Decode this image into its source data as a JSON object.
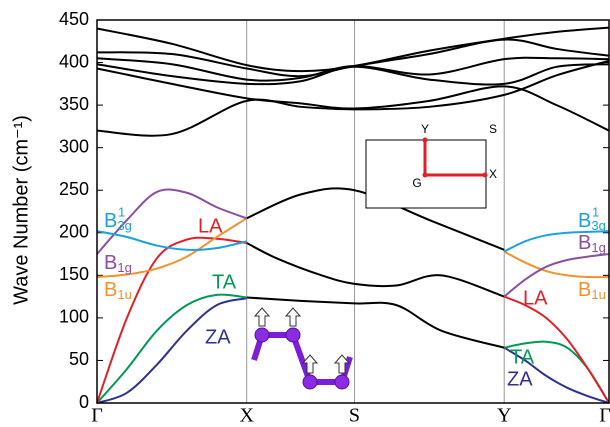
{
  "chart_data": {
    "type": "line",
    "ylabel": "Wave Number (cm⁻¹)",
    "xlim": [
      0,
      3.42
    ],
    "ylim": [
      0,
      450
    ],
    "xticks": [
      {
        "value": 0,
        "label": "Γ"
      },
      {
        "value": 1,
        "label": "X"
      },
      {
        "value": 1.72,
        "label": "S"
      },
      {
        "value": 2.72,
        "label": "Y"
      },
      {
        "value": 3.42,
        "label": "Γ"
      }
    ],
    "yticks": [
      0,
      50,
      100,
      150,
      200,
      250,
      300,
      350,
      400,
      450
    ],
    "inset_labels": {
      "y": "Y",
      "s": "S",
      "g": "G",
      "x": "X"
    },
    "series": [
      {
        "color": "#000000",
        "x": [
          0,
          0.5,
          1,
          1.36,
          1.72,
          2.22,
          2.72,
          3.07,
          3.42
        ],
        "values": [
          440,
          422,
          397,
          390,
          396,
          414,
          428,
          436,
          441
        ]
      },
      {
        "color": "#000000",
        "x": [
          0,
          0.5,
          1,
          1.36,
          1.72,
          2.22,
          2.72,
          3.07,
          3.42
        ],
        "values": [
          412,
          410,
          393,
          384,
          396,
          410,
          427,
          416,
          408
        ]
      },
      {
        "color": "#000000",
        "x": [
          0,
          0.5,
          1,
          1.36,
          1.72,
          2.22,
          2.72,
          3.07,
          3.42
        ],
        "values": [
          405,
          398,
          380,
          382,
          396,
          386,
          404,
          405,
          404
        ]
      },
      {
        "color": "#000000",
        "x": [
          0,
          0.5,
          1,
          1.36,
          1.72,
          2.22,
          2.72,
          3.07,
          3.42
        ],
        "values": [
          398,
          384,
          375,
          378,
          395,
          380,
          375,
          395,
          398
        ]
      },
      {
        "color": "#000000",
        "x": [
          0,
          0.5,
          1,
          1.36,
          1.72,
          2.22,
          2.72,
          3.07,
          3.42
        ],
        "values": [
          393,
          375,
          358,
          352,
          346,
          355,
          372,
          350,
          320
        ]
      },
      {
        "color": "#000000",
        "x": [
          0,
          0.5,
          1,
          1.36,
          1.72,
          2.22,
          2.72,
          3.07,
          3.42
        ],
        "values": [
          320,
          316,
          355,
          348,
          345,
          348,
          362,
          385,
          402
        ]
      },
      {
        "color": "#000000",
        "x": [
          1,
          1.36,
          1.72,
          2.22,
          2.72
        ],
        "values": [
          217,
          245,
          250,
          215,
          180
        ]
      },
      {
        "color": "#000000",
        "x": [
          1,
          1.2,
          1.5,
          1.72,
          2.0,
          2.3,
          2.72
        ],
        "values": [
          188,
          170,
          150,
          140,
          138,
          150,
          125
        ]
      },
      {
        "color": "#000000",
        "x": [
          1,
          1.36,
          1.72,
          2.0,
          2.3,
          2.72
        ],
        "values": [
          124,
          120,
          117,
          115,
          85,
          65
        ]
      },
      {
        "name": "ZA",
        "color": "#2e3192",
        "x": [
          0,
          0.2,
          0.4,
          0.6,
          0.8,
          1
        ],
        "values": [
          0,
          12,
          45,
          85,
          115,
          123
        ]
      },
      {
        "name": "TA",
        "color": "#009a55",
        "x": [
          0,
          0.2,
          0.4,
          0.6,
          0.8,
          1
        ],
        "values": [
          0,
          40,
          85,
          115,
          127,
          124
        ]
      },
      {
        "name": "LA",
        "color": "#e21e26",
        "x": [
          0,
          0.2,
          0.4,
          0.6,
          0.8,
          1
        ],
        "values": [
          0,
          100,
          170,
          192,
          193,
          188
        ]
      },
      {
        "name": "B1u",
        "color": "#f3922a",
        "x": [
          0,
          0.2,
          0.4,
          0.6,
          0.8,
          1
        ],
        "values": [
          148,
          151,
          158,
          172,
          195,
          217
        ]
      },
      {
        "name": "B1g",
        "color": "#8a4fa1",
        "x": [
          0,
          0.2,
          0.4,
          0.6,
          0.8,
          1
        ],
        "values": [
          175,
          215,
          248,
          247,
          230,
          217
        ]
      },
      {
        "name": "B3g",
        "superscript": "1",
        "color": "#1ba1de",
        "x": [
          0,
          0.2,
          0.4,
          0.6,
          0.8,
          1
        ],
        "values": [
          202,
          195,
          185,
          180,
          182,
          190
        ]
      },
      {
        "name": "ZA",
        "color": "#2e3192",
        "x": [
          2.72,
          2.86,
          3.0,
          3.14,
          3.28,
          3.42
        ],
        "values": [
          65,
          50,
          32,
          18,
          8,
          0
        ]
      },
      {
        "name": "TA",
        "color": "#009a55",
        "x": [
          2.72,
          2.86,
          3.0,
          3.14,
          3.28,
          3.42
        ],
        "values": [
          65,
          70,
          72,
          65,
          40,
          0
        ]
      },
      {
        "name": "LA",
        "color": "#e21e26",
        "x": [
          2.72,
          2.86,
          3.0,
          3.14,
          3.28,
          3.42
        ],
        "values": [
          125,
          115,
          100,
          75,
          40,
          0
        ]
      },
      {
        "name": "B1u",
        "color": "#f3922a",
        "x": [
          2.72,
          2.86,
          3.0,
          3.14,
          3.28,
          3.42
        ],
        "values": [
          178,
          165,
          155,
          150,
          148,
          148
        ]
      },
      {
        "name": "B1g",
        "color": "#8a4fa1",
        "x": [
          2.72,
          2.86,
          3.0,
          3.14,
          3.28,
          3.42
        ],
        "values": [
          125,
          145,
          160,
          168,
          172,
          175
        ]
      },
      {
        "name": "B3g",
        "superscript": "1",
        "color": "#1ba1de",
        "x": [
          2.72,
          2.86,
          3.0,
          3.14,
          3.28,
          3.42
        ],
        "values": [
          178,
          190,
          197,
          200,
          201,
          202
        ]
      }
    ]
  }
}
